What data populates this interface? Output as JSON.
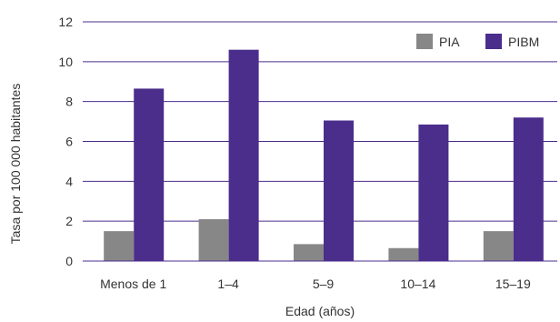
{
  "chart_data": {
    "type": "bar",
    "title": "",
    "xlabel": "Edad (años)",
    "ylabel": "Tasa por 100 000 habitantes",
    "categories": [
      "Menos de 1",
      "1–4",
      "5–9",
      "10–14",
      "15–19"
    ],
    "series": [
      {
        "name": "PIA",
        "color": "#878787",
        "values": [
          1.5,
          2.1,
          0.85,
          0.65,
          1.5
        ]
      },
      {
        "name": "PIBM",
        "color": "#4b2d8c",
        "values": [
          8.65,
          10.6,
          7.05,
          6.85,
          7.2
        ]
      }
    ],
    "ylim": [
      0,
      12
    ],
    "yticks": [
      "0",
      "2",
      "4",
      "6",
      "8",
      "10",
      "12"
    ],
    "grid": true,
    "legend_position": "top-right"
  }
}
